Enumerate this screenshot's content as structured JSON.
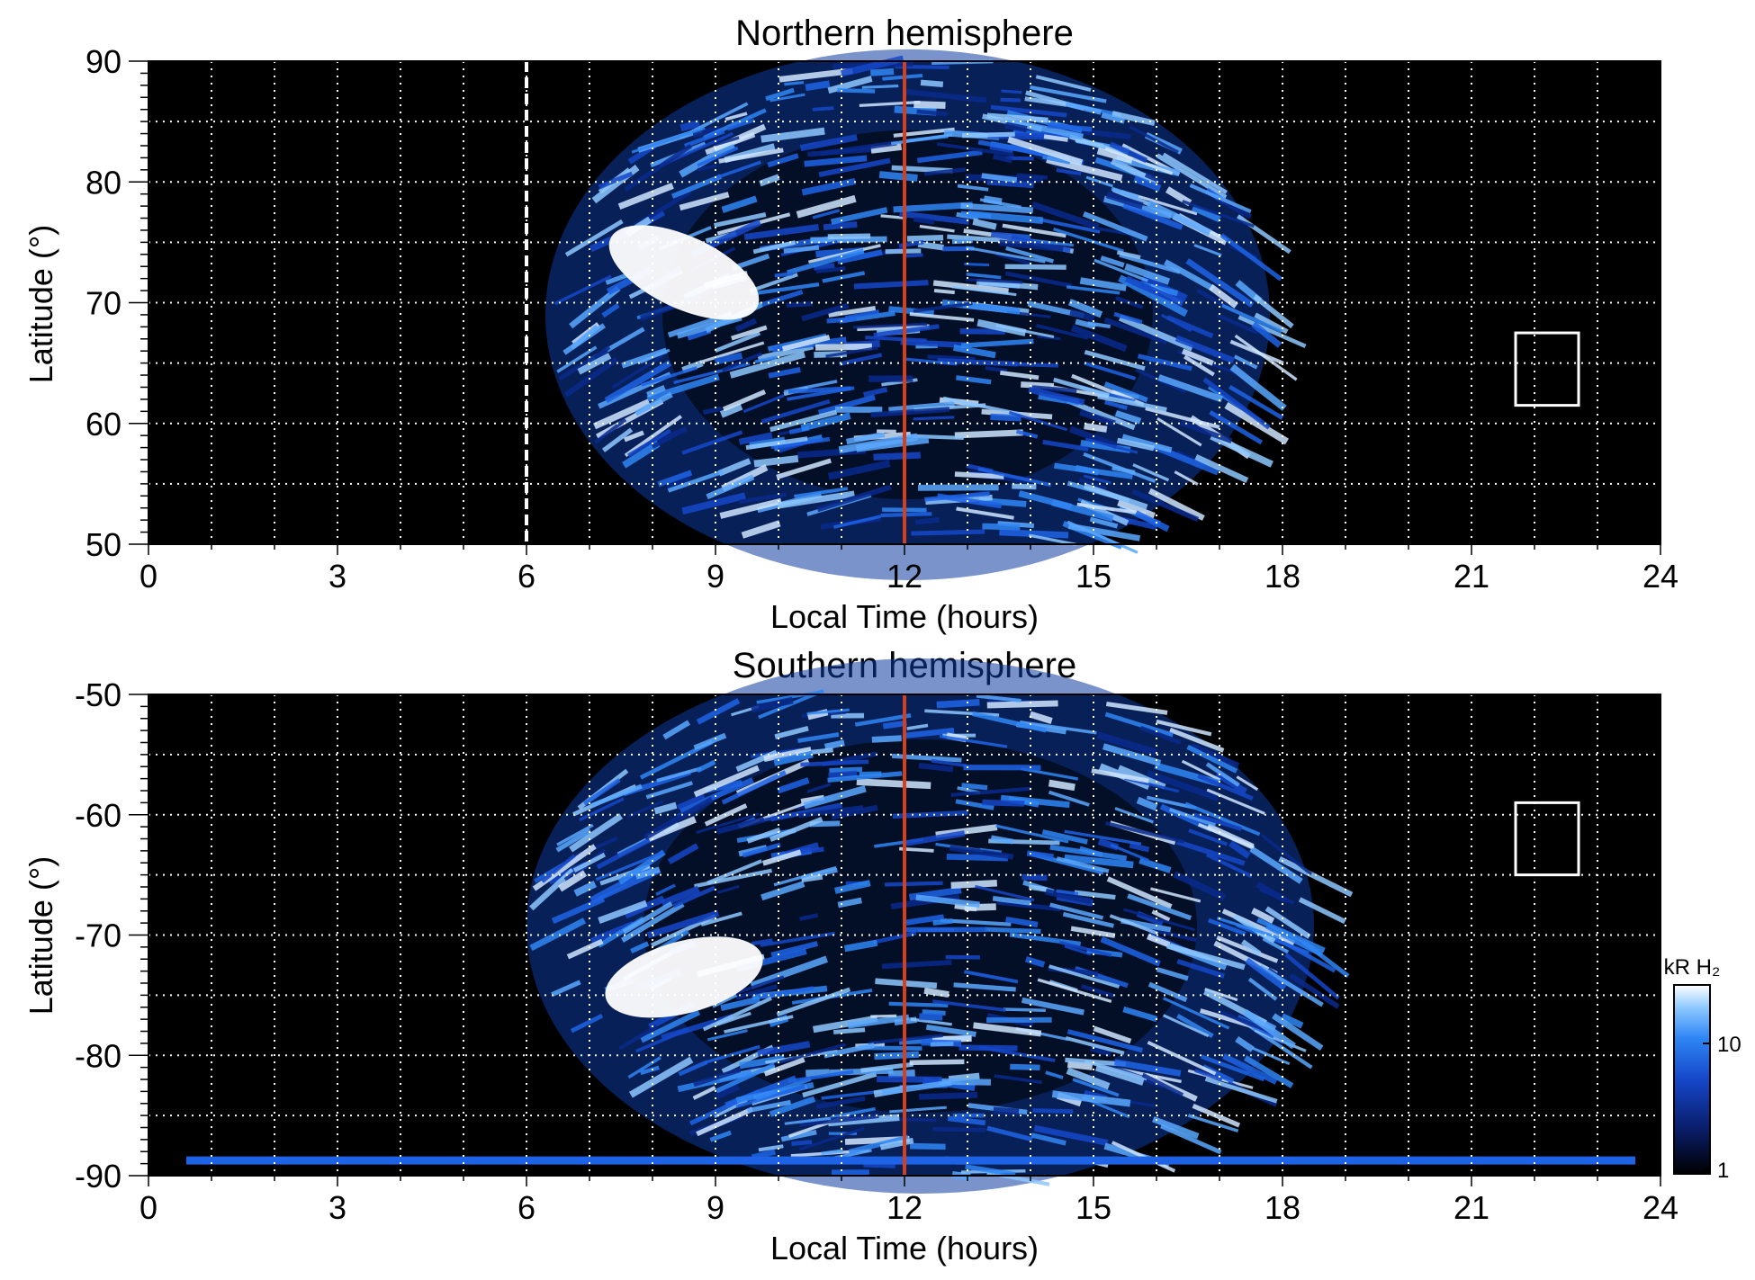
{
  "chart_data": [
    {
      "type": "heatmap",
      "title": "Northern hemisphere",
      "xlabel": "Local Time (hours)",
      "ylabel": "Latitude (°)",
      "xlim": [
        0,
        24
      ],
      "ylim": [
        50,
        90
      ],
      "xticks": [
        "0",
        "3",
        "6",
        "9",
        "12",
        "15",
        "18",
        "21",
        "24"
      ],
      "yticks": [
        "50",
        "60",
        "70",
        "80",
        "90"
      ],
      "grid": true,
      "background": "#000000",
      "reference_lines": [
        {
          "axis": "x",
          "value": 12,
          "color": "#d2401e",
          "style": "solid"
        },
        {
          "axis": "x",
          "value": 6,
          "color": "#ffffff",
          "style": "dashed"
        }
      ],
      "box": {
        "x": [
          21.7,
          22.7
        ],
        "y": [
          61.5,
          67.5
        ]
      },
      "emission_region": {
        "x_range": [
          6.3,
          17.8
        ],
        "y_range": [
          50,
          88
        ]
      },
      "bright_spot": {
        "x": 8.5,
        "y": 72.5
      }
    },
    {
      "type": "heatmap",
      "title": "Southern hemisphere",
      "xlabel": "Local Time (hours)",
      "ylabel": "Latitude (°)",
      "xlim": [
        0,
        24
      ],
      "ylim": [
        -90,
        -50
      ],
      "xticks": [
        "0",
        "3",
        "6",
        "9",
        "12",
        "15",
        "18",
        "21",
        "24"
      ],
      "yticks": [
        "-50",
        "-60",
        "-70",
        "-80",
        "-90"
      ],
      "grid": true,
      "background": "#000000",
      "reference_lines": [
        {
          "axis": "x",
          "value": 12,
          "color": "#d2401e",
          "style": "solid"
        }
      ],
      "box": {
        "x": [
          21.7,
          22.7
        ],
        "y": [
          -65,
          -59
        ]
      },
      "emission_region": {
        "x_range": [
          6.0,
          18.5
        ],
        "y_range": [
          -88.5,
          -50
        ]
      },
      "bright_spot": {
        "x": 8.5,
        "y": -73.5
      },
      "colorbar": {
        "label": "kR H₂",
        "ticks": [
          "1",
          "10"
        ],
        "colors": [
          "#000000",
          "#0a1f6e",
          "#1547c9",
          "#2f86f5",
          "#8ec8ff",
          "#ffffff"
        ]
      }
    }
  ]
}
